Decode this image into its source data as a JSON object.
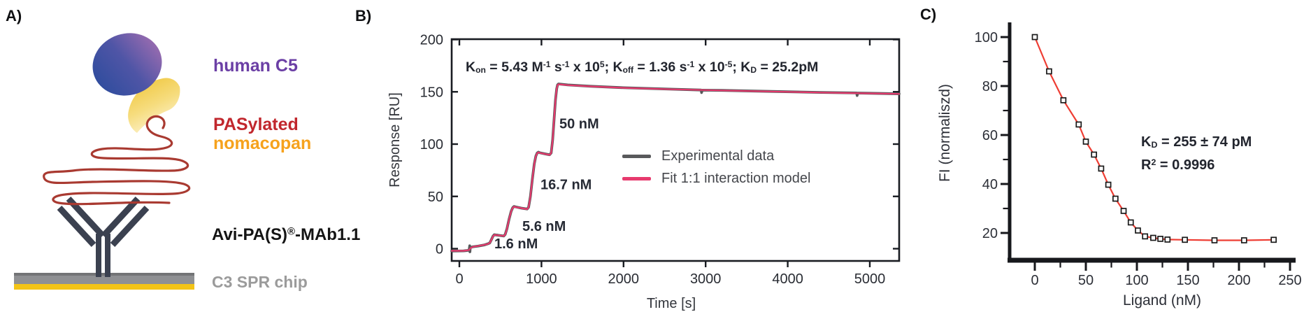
{
  "figure": {
    "panelA_letter": "A)",
    "panelB_letter": "B)",
    "panelC_letter": "C)"
  },
  "panelA": {
    "labels": {
      "human_c5": {
        "text": "human C5",
        "color": "#6b3fa5"
      },
      "pasylated": {
        "text": "PASylated",
        "color": "#c1272d"
      },
      "nomacopan": {
        "text": "nomacopan",
        "color": "#f6a21d"
      },
      "mab_parts": [
        [
          "Avi-PA(S)",
          "n"
        ],
        [
          "®",
          "sup"
        ],
        [
          "-MAb1.1",
          "n"
        ]
      ],
      "mab_color": "#141414",
      "chip": {
        "text": "C3 SPR chip",
        "color": "#9b9b9b"
      }
    },
    "colors": {
      "c5_blue": "#304d9e",
      "c5_mid": "#4f55a6",
      "c5_purple": "#9a6cb0",
      "nomacopan_yellow": "#efc436",
      "nomacopan_mid": "#f6dc7d",
      "nomacopan_pale": "#fdf3cf",
      "pas_red": "#a93a31",
      "antibody_dark": "#3b4150",
      "chip_gray": "#8f9093",
      "chip_gray_dark": "#737476",
      "chip_gold": "#f3c417"
    }
  },
  "chart_data": [
    {
      "panel": "B",
      "type": "line",
      "title_parts": [
        [
          "K",
          "n"
        ],
        [
          "on",
          "sub"
        ],
        [
          " = 5.43 M",
          "n"
        ],
        [
          "-1",
          "sup"
        ],
        [
          " s",
          "n"
        ],
        [
          "-1",
          "sup"
        ],
        [
          " x 10",
          "n"
        ],
        [
          "5",
          "sup"
        ],
        [
          "; K",
          "n"
        ],
        [
          "off",
          "sub"
        ],
        [
          " = 1.36 s",
          "n"
        ],
        [
          "-1",
          "sup"
        ],
        [
          " x 10",
          "n"
        ],
        [
          "-5",
          "sup"
        ],
        [
          "; K",
          "n"
        ],
        [
          "D",
          "sub"
        ],
        [
          " = 25.2pM",
          "n"
        ]
      ],
      "xlabel": "Time [s]",
      "ylabel": "Response [RU]",
      "xlim": [
        -94,
        5358
      ],
      "ylim": [
        -11,
        200
      ],
      "xticks": [
        0,
        1000,
        2000,
        3000,
        4000,
        5000
      ],
      "yticks": [
        0,
        50,
        100,
        150,
        200
      ],
      "grid": false,
      "frame": "box",
      "legend_position": "inside-center-right",
      "annotations": [
        {
          "text": "1.6 nM",
          "t": 426,
          "ru": 0.5
        },
        {
          "text": "5.6 nM",
          "t": 767,
          "ru": 17
        },
        {
          "text": "16.7 nM",
          "t": 988,
          "ru": 57
        },
        {
          "text": "50 nM",
          "t": 1218,
          "ru": 115
        }
      ],
      "series": [
        {
          "name": "Experimental data",
          "color": "#58595b",
          "width": 3.8,
          "points": [
            [
              -94,
              -2.2
            ],
            [
              50,
              -2.1
            ],
            [
              85,
              -1.8
            ],
            [
              118,
              -1.4
            ],
            [
              126,
              2.8
            ],
            [
              129,
              -3
            ],
            [
              133,
              1
            ],
            [
              165,
              1.9
            ],
            [
              230,
              2.5
            ],
            [
              300,
              3.5
            ],
            [
              345,
              4.6
            ],
            [
              370,
              5.4
            ],
            [
              390,
              8.6
            ],
            [
              410,
              12
            ],
            [
              425,
              13.4
            ],
            [
              440,
              13.2
            ],
            [
              470,
              12.9
            ],
            [
              540,
              12.1
            ],
            [
              558,
              13.6
            ],
            [
              580,
              19.2
            ],
            [
              605,
              28
            ],
            [
              630,
              35.6
            ],
            [
              650,
              39.2
            ],
            [
              665,
              40.4
            ],
            [
              685,
              40
            ],
            [
              755,
              38.8
            ],
            [
              825,
              37.9
            ],
            [
              843,
              39.6
            ],
            [
              865,
              50
            ],
            [
              888,
              66
            ],
            [
              912,
              81
            ],
            [
              932,
              88.6
            ],
            [
              948,
              91.5
            ],
            [
              963,
              92.4
            ],
            [
              978,
              91.8
            ],
            [
              1050,
              90.6
            ],
            [
              1100,
              89.8
            ],
            [
              1118,
              91.6
            ],
            [
              1136,
              104
            ],
            [
              1154,
              124
            ],
            [
              1170,
              142
            ],
            [
              1186,
              153
            ],
            [
              1196,
              156.6
            ],
            [
              1208,
              157.5
            ],
            [
              1320,
              156.6
            ],
            [
              1600,
              155.3
            ],
            [
              2000,
              153.9
            ],
            [
              2600,
              152.5
            ],
            [
              2945,
              151.7
            ],
            [
              2951,
              149.2
            ],
            [
              2958,
              151.6
            ],
            [
              3200,
              151.4
            ],
            [
              3800,
              150.4
            ],
            [
              4400,
              149.4
            ],
            [
              4840,
              148.9
            ],
            [
              4846,
              146.4
            ],
            [
              4853,
              148.8
            ],
            [
              5000,
              148.6
            ],
            [
              5358,
              148.1
            ]
          ]
        },
        {
          "name": "Fit 1:1 interaction model",
          "color": "#e73a6e",
          "width": 2.2,
          "points": [
            [
              -94,
              -2
            ],
            [
              50,
              -2
            ],
            [
              90,
              -1.6
            ],
            [
              120,
              -1.2
            ],
            [
              135,
              0.5
            ],
            [
              165,
              1.8
            ],
            [
              230,
              2.6
            ],
            [
              300,
              3.6
            ],
            [
              345,
              4.5
            ],
            [
              370,
              5.5
            ],
            [
              390,
              8.5
            ],
            [
              410,
              11.8
            ],
            [
              425,
              13.2
            ],
            [
              440,
              13.1
            ],
            [
              540,
              12.2
            ],
            [
              558,
              13.5
            ],
            [
              580,
              19
            ],
            [
              605,
              28
            ],
            [
              630,
              35.5
            ],
            [
              650,
              39
            ],
            [
              665,
              40.2
            ],
            [
              685,
              39.8
            ],
            [
              825,
              37.8
            ],
            [
              843,
              39.5
            ],
            [
              865,
              50
            ],
            [
              888,
              66
            ],
            [
              912,
              81
            ],
            [
              932,
              88.5
            ],
            [
              948,
              91.3
            ],
            [
              963,
              92.2
            ],
            [
              978,
              91.6
            ],
            [
              1100,
              89.7
            ],
            [
              1118,
              91.5
            ],
            [
              1136,
              104
            ],
            [
              1154,
              124
            ],
            [
              1170,
              142
            ],
            [
              1186,
              153
            ],
            [
              1196,
              156.4
            ],
            [
              1208,
              157.2
            ],
            [
              1320,
              156.4
            ],
            [
              1600,
              155.2
            ],
            [
              2000,
              153.8
            ],
            [
              2600,
              152.4
            ],
            [
              3200,
              151.3
            ],
            [
              3800,
              150.3
            ],
            [
              4400,
              149.3
            ],
            [
              5000,
              148.5
            ],
            [
              5358,
              148
            ]
          ]
        }
      ]
    },
    {
      "panel": "C",
      "type": "scatter",
      "xlabel": "Ligand (nM)",
      "ylabel": "FI (normaliszd)",
      "xlim": [
        -25,
        255
      ],
      "ylim": [
        9,
        106
      ],
      "xticks": [
        0,
        50,
        100,
        150,
        200,
        250
      ],
      "xticks_minor": [
        25,
        75,
        125,
        175,
        225
      ],
      "yticks": [
        20,
        40,
        60,
        80,
        100
      ],
      "yticks_minor": [
        30,
        50,
        70,
        90
      ],
      "grid": false,
      "frame": "axes",
      "annotation_parts": [
        [
          [
            "K",
            "n"
          ],
          [
            "D",
            "sub"
          ],
          [
            " = 255 ± 74 pM",
            "n"
          ]
        ],
        [
          [
            "R",
            "n"
          ],
          [
            "2",
            "sup"
          ],
          [
            " = 0.9996",
            "n"
          ]
        ]
      ],
      "fit_line_color": "#ee3d33",
      "marker_color": "#1a1a1a",
      "points": [
        [
          0,
          100
        ],
        [
          14,
          86
        ],
        [
          28,
          74.2
        ],
        [
          43,
          64.3
        ],
        [
          50,
          57.3
        ],
        [
          58,
          52
        ],
        [
          65,
          46.3
        ],
        [
          72,
          39.7
        ],
        [
          79,
          34
        ],
        [
          87,
          29
        ],
        [
          94,
          24.3
        ],
        [
          101,
          21
        ],
        [
          108,
          18.6
        ],
        [
          116,
          18
        ],
        [
          123,
          17.6
        ],
        [
          130,
          17.3
        ],
        [
          147,
          17.2
        ],
        [
          176,
          17
        ],
        [
          205,
          17
        ],
        [
          234,
          17.2
        ]
      ]
    }
  ]
}
